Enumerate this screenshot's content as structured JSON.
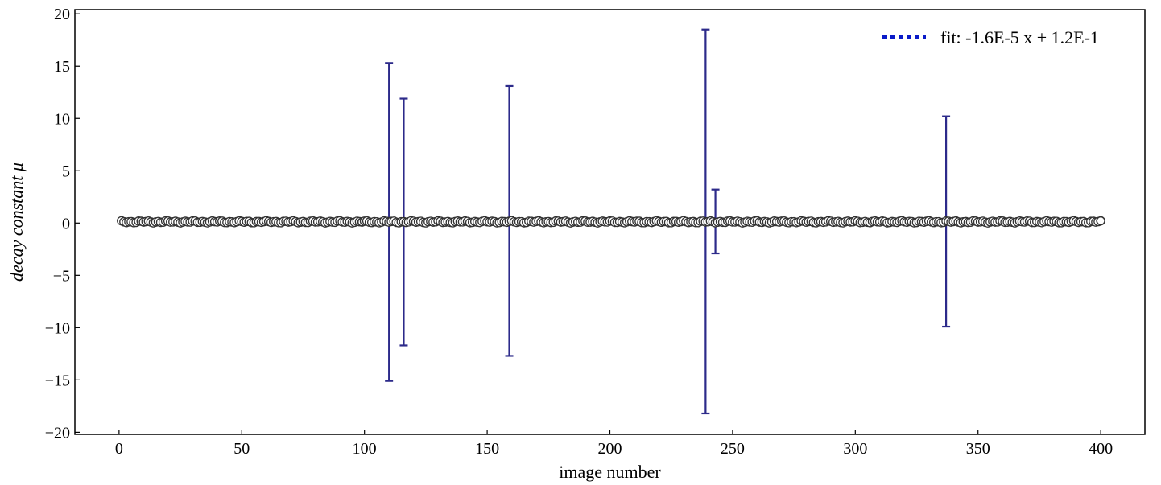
{
  "chart_data": {
    "type": "scatter",
    "title": "",
    "xlabel": "image number",
    "ylabel": "decay constant μ",
    "xlim": [
      -18,
      418
    ],
    "ylim": [
      -20.2,
      20.4
    ],
    "xticks": [
      0,
      50,
      100,
      150,
      200,
      250,
      300,
      350,
      400
    ],
    "yticks": [
      -20,
      -15,
      -10,
      -5,
      0,
      5,
      10,
      15,
      20
    ],
    "grid": false,
    "legend": {
      "position": "top-right",
      "entries": [
        "fit: -1.6E-5 x + 1.2E-1"
      ]
    },
    "series": [
      {
        "kind": "points",
        "x_range": [
          1,
          400
        ],
        "y_value": 0.12,
        "marker_face": "#ffffff",
        "marker_edge": "#333333",
        "highlighted_x": [
          9,
          99,
          400
        ]
      },
      {
        "kind": "error_bars",
        "color": "#2c2a8a",
        "points": [
          {
            "x": 110,
            "y": 0.12,
            "low": -15.1,
            "high": 15.3
          },
          {
            "x": 116,
            "y": 0.12,
            "low": -11.7,
            "high": 11.9
          },
          {
            "x": 159,
            "y": 0.12,
            "low": -12.7,
            "high": 13.1
          },
          {
            "x": 239,
            "y": 0.12,
            "low": -18.2,
            "high": 18.5
          },
          {
            "x": 243,
            "y": 0.12,
            "low": -2.9,
            "high": 3.2
          },
          {
            "x": 337,
            "y": 0.12,
            "low": -9.9,
            "high": 10.2
          }
        ]
      },
      {
        "kind": "fit_line",
        "name": "fit: -1.6E-5 x + 1.2E-1",
        "color": "#0a1bc8",
        "slope": -1.6e-05,
        "intercept": 0.12,
        "dashed": true
      }
    ]
  }
}
